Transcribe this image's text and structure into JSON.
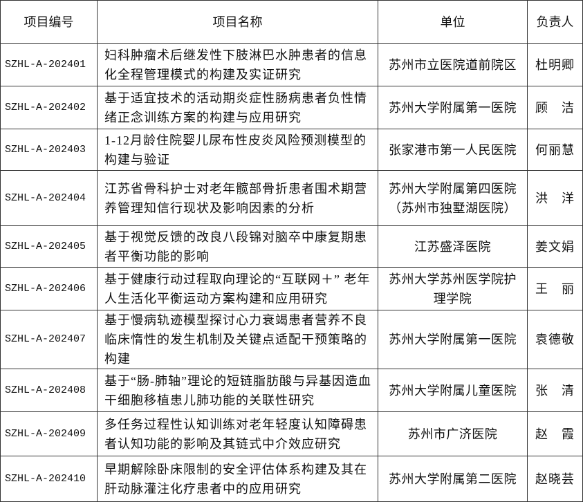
{
  "table": {
    "header": [
      "项目编号",
      "项目名称",
      "单位",
      "负责人"
    ],
    "rows": [
      [
        "SZHL-A-202401",
        "妇科肿瘤术后继发性下肢淋巴水肿患者的信息化全程管理模式的构建及实证研究",
        "苏州市立医院道前院区",
        "杜明卿"
      ],
      [
        "SZHL-A-202402",
        "基于适宜技术的活动期炎症性肠病患者负性情绪正念训练方案的构建与应用研究",
        "苏州大学附属第一医院",
        "顾　洁"
      ],
      [
        "SZHL-A-202403",
        "1-12月龄住院婴儿尿布性皮炎风险预测模型的构建与验证",
        "张家港市第一人民医院",
        "何丽慧"
      ],
      [
        "SZHL-A-202404",
        "江苏省骨科护士对老年髋部骨折患者围术期营养管理知信行现状及影响因素的分析",
        "苏州大学附属第四医院（苏州市独墅湖医院）",
        "洪　洋"
      ],
      [
        "SZHL-A-202405",
        "基于视觉反馈的改良八段锦对脑卒中康复期患者平衡功能的影响",
        "江苏盛泽医院",
        "姜文娟"
      ],
      [
        "SZHL-A-202406",
        "基于健康行动过程取向理论的“互联网＋” 老年人生活化平衡运动方案构建和应用研究",
        "苏州大学苏州医学院护理学院",
        "王　丽"
      ],
      [
        "SZHL-A-202407",
        "基于慢病轨迹模型探讨心力衰竭患者营养不良临床惰性的发生机制及关键点适配干预策略的构建",
        "苏州大学附属第一医院",
        "袁德敬"
      ],
      [
        "SZHL-A-202408",
        "基于“肠-肺轴”理论的短链脂肪酸与异基因造血干细胞移植患儿肺功能的关联性研究",
        "苏州大学附属儿童医院",
        "张　清"
      ],
      [
        "SZHL-A-202409",
        "多任务过程性认知训练对老年轻度认知障碍患者认知功能的影响及其链式中介效应研究",
        "苏州市广济医院",
        "赵　霞"
      ],
      [
        "SZHL-A-202410",
        "早期解除卧床限制的安全评估体系构建及其在肝动脉灌注化疗患者中的应用研究",
        "苏州大学附属第二医院",
        "赵晓芸"
      ]
    ]
  }
}
